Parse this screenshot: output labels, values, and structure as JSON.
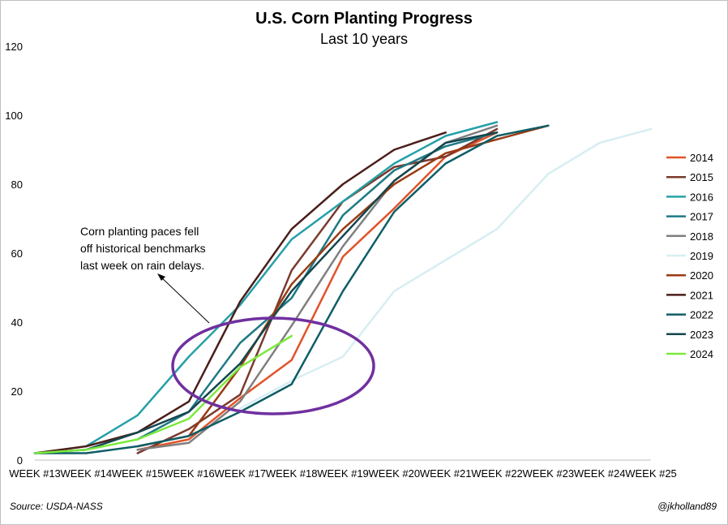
{
  "chart_data": {
    "type": "line",
    "title": "U.S. Corn Planting Progress",
    "subtitle": "Last 10 years",
    "xlabel": "",
    "ylabel": "",
    "categories": [
      "WEEK #13",
      "WEEK #14",
      "WEEK #15",
      "WEEK #16",
      "WEEK #17",
      "WEEK #18",
      "WEEK #19",
      "WEEK #20",
      "WEEK #21",
      "WEEK #22",
      "WEEK #23",
      "WEEK #24",
      "WEEK #25"
    ],
    "ylim": [
      0,
      120
    ],
    "yticks": [
      "0",
      "20",
      "40",
      "60",
      "80",
      "100",
      "120"
    ],
    "grid": false,
    "legend_position": "right",
    "series": [
      {
        "name": "2014",
        "color": "#e0532a",
        "values": [
          null,
          null,
          3,
          6,
          18,
          29,
          59,
          73,
          88,
          95,
          null,
          null,
          null
        ]
      },
      {
        "name": "2015",
        "color": "#7b3a2e",
        "values": [
          null,
          null,
          2,
          9,
          19,
          55,
          75,
          85,
          88,
          96,
          null,
          null,
          null
        ]
      },
      {
        "name": "2016",
        "color": "#26a0a8",
        "values": [
          null,
          4,
          13,
          30,
          45,
          64,
          75,
          86,
          94,
          98,
          null,
          null,
          null
        ]
      },
      {
        "name": "2017",
        "color": "#1e7a85",
        "values": [
          null,
          null,
          6,
          14,
          34,
          47,
          71,
          84,
          91,
          95,
          null,
          null,
          null
        ]
      },
      {
        "name": "2018",
        "color": "#7f7f7f",
        "values": [
          null,
          null,
          3,
          5,
          17,
          39,
          62,
          81,
          92,
          97,
          null,
          null,
          null
        ]
      },
      {
        "name": "2019",
        "color": "#d7eef2",
        "values": [
          null,
          null,
          null,
          null,
          15,
          23,
          30,
          49,
          58,
          67,
          83,
          92,
          96
        ]
      },
      {
        "name": "2020",
        "color": "#9a3a12",
        "values": [
          null,
          null,
          4,
          7,
          27,
          51,
          67,
          80,
          89,
          93,
          97,
          null,
          null
        ]
      },
      {
        "name": "2021",
        "color": "#4a1e1a",
        "values": [
          2,
          4,
          8,
          17,
          46,
          67,
          80,
          90,
          95,
          null,
          null,
          null,
          null
        ]
      },
      {
        "name": "2022",
        "color": "#0e5e66",
        "values": [
          2,
          2,
          4,
          7,
          14,
          22,
          49,
          72,
          86,
          94,
          97,
          null,
          null
        ]
      },
      {
        "name": "2023",
        "color": "#14464e",
        "values": [
          2,
          3,
          8,
          14,
          28,
          49,
          65,
          81,
          92,
          95,
          null,
          null,
          null
        ]
      },
      {
        "name": "2024",
        "color": "#7bea3c",
        "values": [
          2,
          3,
          6,
          12,
          27,
          36,
          null,
          null,
          null,
          null,
          null,
          null,
          null
        ]
      }
    ],
    "annotation": {
      "lines": [
        "Corn planting paces fell",
        "off historical benchmarks",
        "last week on rain delays."
      ],
      "ellipse_color": "#7030a0"
    }
  },
  "footer": {
    "source": "Source: USDA-NASS",
    "handle": "@jkholland89"
  }
}
